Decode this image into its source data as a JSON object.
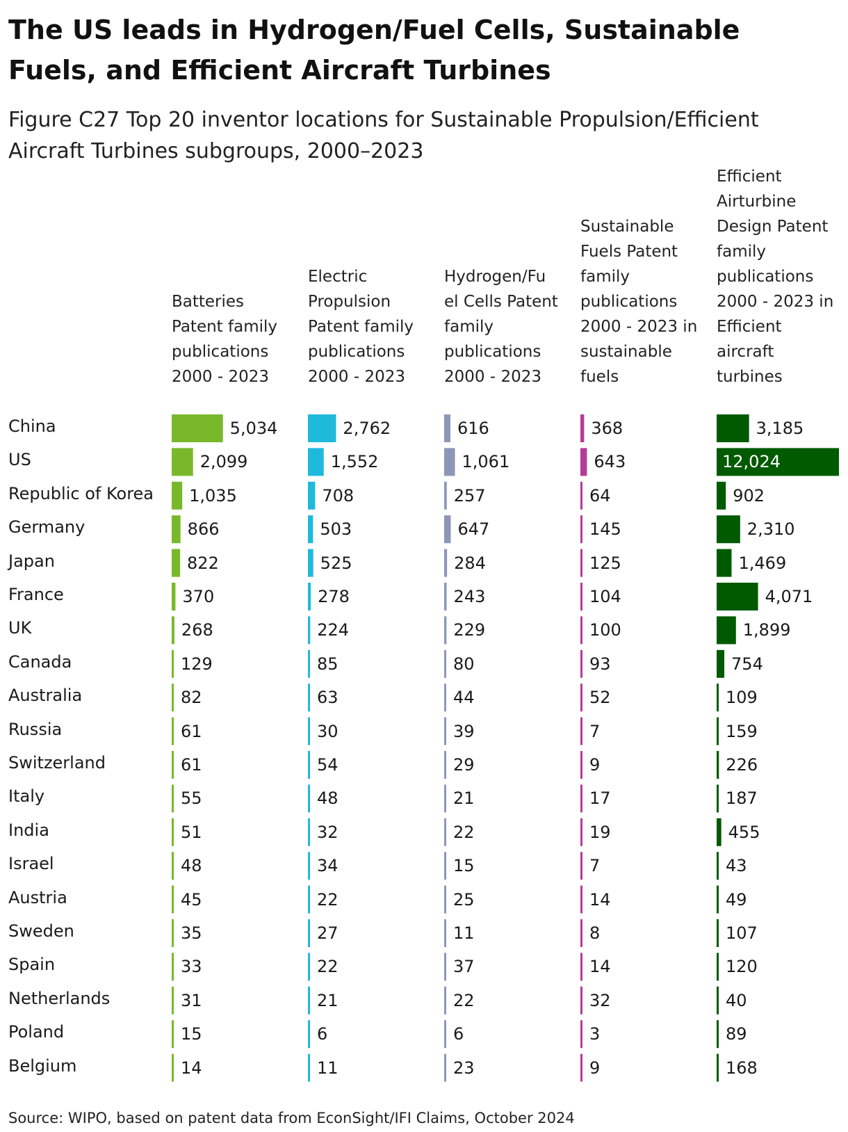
{
  "title": "The US leads in Hydrogen/Fuel Cells, Sustainable Fuels, and Efficient Aircraft Turbines",
  "subtitle": "Figure C27 Top 20 inventor locations for Sustainable Propulsion/Efficient Aircraft Turbines subgroups, 2000–2023",
  "source": "Source: WIPO, based on patent data from EconSight/IFI Claims, October 2024",
  "chart_data": {
    "type": "table",
    "title": "Figure C27 Top 20 inventor locations for Sustainable Propulsion/Efficient Aircraft Turbines subgroups, 2000–2023",
    "categories": [
      "China",
      "US",
      "Republic of Korea",
      "Germany",
      "Japan",
      "France",
      "UK",
      "Canada",
      "Australia",
      "Russia",
      "Switzerland",
      "Italy",
      "India",
      "Israel",
      "Austria",
      "Sweden",
      "Spain",
      "Netherlands",
      "Poland",
      "Belgium"
    ],
    "series": [
      {
        "name": "Batteries Patent family publications 2000 - 2023",
        "header_lines": [
          "Batteries",
          "Patent family",
          "publications",
          "2000 - 2023"
        ],
        "color": "#78b82a",
        "values": [
          5034,
          2099,
          1035,
          866,
          822,
          370,
          268,
          129,
          82,
          61,
          61,
          55,
          51,
          48,
          45,
          35,
          33,
          31,
          15,
          14
        ],
        "labels": [
          "5,034",
          "2,099",
          "1,035",
          "866",
          "822",
          "370",
          "268",
          "129",
          "82",
          "61",
          "61",
          "55",
          "51",
          "48",
          "45",
          "35",
          "33",
          "31",
          "15",
          "14"
        ]
      },
      {
        "name": "Electric Propulsion Patent family publications 2000 - 2023",
        "header_lines": [
          "Electric",
          "Propulsion",
          "Patent family",
          "publications",
          "2000 - 2023"
        ],
        "color": "#1fb9dc",
        "values": [
          2762,
          1552,
          708,
          503,
          525,
          278,
          224,
          85,
          63,
          30,
          54,
          48,
          32,
          34,
          22,
          27,
          22,
          21,
          6,
          11
        ],
        "labels": [
          "2,762",
          "1,552",
          "708",
          "503",
          "525",
          "278",
          "224",
          "85",
          "63",
          "30",
          "54",
          "48",
          "32",
          "34",
          "22",
          "27",
          "22",
          "21",
          "6",
          "11"
        ]
      },
      {
        "name": "Hydrogen/Fuel Cells Patent family publications 2000 - 2023",
        "header_lines": [
          "Hydrogen/Fu",
          "el Cells Patent",
          "family",
          "publications",
          "2000 - 2023"
        ],
        "color": "#8e96b8",
        "values": [
          616,
          1061,
          257,
          647,
          284,
          243,
          229,
          80,
          44,
          39,
          29,
          21,
          22,
          15,
          25,
          11,
          37,
          22,
          6,
          23
        ],
        "labels": [
          "616",
          "1,061",
          "257",
          "647",
          "284",
          "243",
          "229",
          "80",
          "44",
          "39",
          "29",
          "21",
          "22",
          "15",
          "25",
          "11",
          "37",
          "22",
          "6",
          "23"
        ]
      },
      {
        "name": "Sustainable Fuels Patent family publications 2000 - 2023 in sustainable fuels",
        "header_lines": [
          "Sustainable",
          "Fuels Patent",
          "family",
          "publications",
          "2000 - 2023 in",
          "sustainable",
          "fuels"
        ],
        "color": "#b43c98",
        "values": [
          368,
          643,
          64,
          145,
          125,
          104,
          100,
          93,
          52,
          7,
          9,
          17,
          19,
          7,
          14,
          8,
          14,
          32,
          3,
          9
        ],
        "labels": [
          "368",
          "643",
          "64",
          "145",
          "125",
          "104",
          "100",
          "93",
          "52",
          "7",
          "9",
          "17",
          "19",
          "7",
          "14",
          "8",
          "14",
          "32",
          "3",
          "9"
        ]
      },
      {
        "name": "Efficient Airturbine Design Patent family publications 2000 - 2023 in Efficient aircraft turbines",
        "header_lines": [
          "Efficient",
          "Airturbine",
          "Design Patent",
          "family",
          "publications",
          "2000 - 2023 in",
          "Efficient",
          "aircraft",
          "turbines"
        ],
        "color": "#005a00",
        "values": [
          3185,
          12024,
          902,
          2310,
          1469,
          4071,
          1899,
          754,
          109,
          159,
          226,
          187,
          455,
          43,
          49,
          107,
          120,
          40,
          89,
          168
        ],
        "labels": [
          "3,185",
          "12,024",
          "902",
          "2,310",
          "1,469",
          "4,071",
          "1,899",
          "754",
          "109",
          "159",
          "226",
          "187",
          "455",
          "43",
          "49",
          "107",
          "120",
          "40",
          "89",
          "168"
        ]
      }
    ],
    "xlabel": "",
    "ylabel": "",
    "grid": false,
    "legend": "none"
  }
}
